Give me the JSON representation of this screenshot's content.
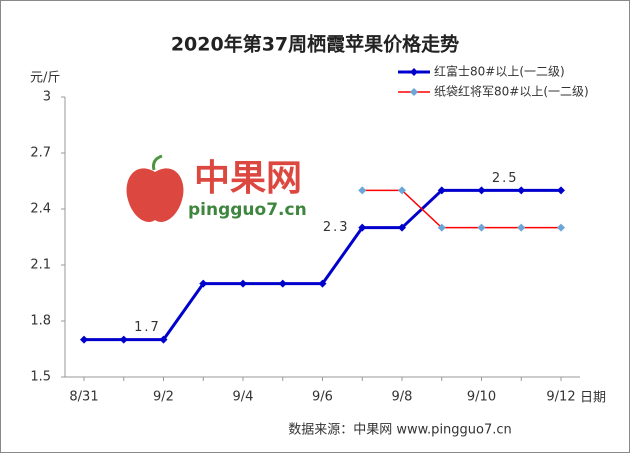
{
  "chart_data": {
    "type": "line",
    "title": "2020年第37周栖霞苹果价格走势",
    "y_label": "元/斤",
    "x_label": "日期",
    "source": "数据来源：中果网 www.pingguo7.cn",
    "watermark": {
      "brand": "中果网",
      "site": "pingguo7.cn"
    },
    "categories": [
      "8/31",
      null,
      "9/2",
      null,
      "9/4",
      null,
      "9/6",
      null,
      "9/8",
      null,
      "9/10",
      null,
      "9/12"
    ],
    "series": [
      {
        "name": "红富士80#以上(一二级)",
        "color": "#0000cc",
        "marker_color": "#0000cc",
        "values": [
          1.7,
          1.7,
          1.7,
          2.0,
          2.0,
          2.0,
          2.0,
          2.3,
          2.3,
          2.5,
          2.5,
          2.5,
          2.5
        ],
        "value_labels": [
          null,
          null,
          "1.7",
          null,
          null,
          null,
          null,
          "2.3",
          null,
          null,
          null,
          "2.5",
          null
        ]
      },
      {
        "name": "纸袋红将军80#以上(一二级)",
        "color": "#ff0000",
        "marker_color": "#6aa6d8",
        "values": [
          null,
          null,
          null,
          null,
          null,
          null,
          null,
          2.5,
          2.5,
          2.3,
          2.3,
          2.3,
          2.3
        ]
      }
    ],
    "ylim": [
      1.5,
      3
    ],
    "yticks": [
      1.5,
      1.8,
      2.1,
      2.4,
      2.7,
      3
    ],
    "grid": false,
    "legend": "top-right"
  }
}
